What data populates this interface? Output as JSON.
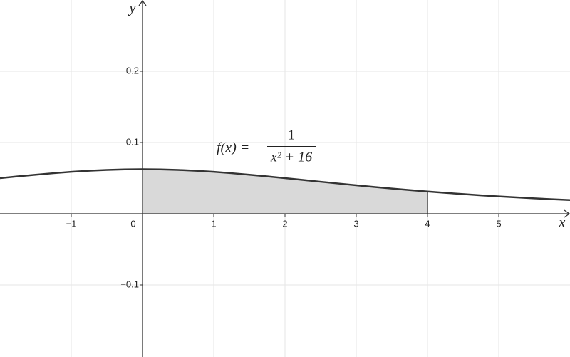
{
  "chart_data": {
    "type": "line",
    "x_label": "x",
    "y_label": "y",
    "annotation": {
      "lhs": "f(x) =",
      "numerator": "1",
      "denominator": "x² + 16"
    },
    "x": [
      -2,
      -1.75,
      -1.5,
      -1.25,
      -1,
      -0.75,
      -0.5,
      -0.25,
      0,
      0.25,
      0.5,
      0.75,
      1,
      1.25,
      1.5,
      1.75,
      2,
      2.25,
      2.5,
      2.75,
      3,
      3.25,
      3.5,
      3.75,
      4,
      4.25,
      4.5,
      4.75,
      5,
      5.25,
      5.5,
      5.75,
      6
    ],
    "series": [
      {
        "color": "#333333",
        "values": [
          0.05,
          0.05246,
          0.05479,
          0.05694,
          0.05882,
          0.06038,
          0.06154,
          0.06226,
          0.0625,
          0.06226,
          0.06154,
          0.06038,
          0.05882,
          0.05694,
          0.05479,
          0.05246,
          0.05,
          0.04748,
          0.04494,
          0.04244,
          0.04,
          0.03765,
          0.0354,
          0.03326,
          0.03125,
          0.02936,
          0.02759,
          0.02593,
          0.02439,
          0.02296,
          0.02162,
          0.02038,
          0.01923
        ]
      }
    ],
    "area": {
      "from": 0,
      "to": 4,
      "color": "#d9d9d9"
    },
    "xlim": [
      -2,
      6
    ],
    "ylim": [
      -0.201,
      0.3
    ],
    "xticks": [
      {
        "value": -1,
        "label": "−1"
      },
      0,
      1,
      2,
      3,
      4,
      5
    ],
    "yticks": [
      {
        "value": -0.1,
        "label": "−0.1"
      },
      0.1,
      0.2
    ],
    "grid": true
  }
}
